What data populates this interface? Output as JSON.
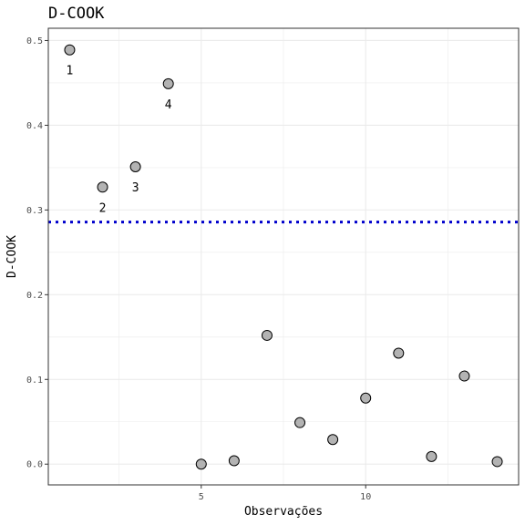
{
  "chart_data": {
    "type": "scatter",
    "title": "D-COOK",
    "xlabel": "Observações",
    "ylabel": "D-COOK",
    "xlim": [
      0.35,
      14.65
    ],
    "ylim": [
      -0.0245,
      0.5145
    ],
    "x_ticks": [
      5,
      10
    ],
    "x_tick_labels": [
      "5",
      "10"
    ],
    "y_ticks": [
      0.0,
      0.1,
      0.2,
      0.3,
      0.4,
      0.5
    ],
    "y_tick_labels": [
      "0.0",
      "0.1",
      "0.2",
      "0.3",
      "0.4",
      "0.5"
    ],
    "grid": true,
    "legend": "none",
    "reference_line": {
      "y": 0.2857,
      "color": "#0000cc",
      "style": "dotted"
    },
    "colors": {
      "point_fill": "#b3b3b3",
      "point_stroke": "#000000",
      "grid": "#ebebeb",
      "panel_border": "#333333"
    },
    "x": [
      1,
      2,
      3,
      4,
      5,
      6,
      7,
      8,
      9,
      10,
      11,
      12,
      13,
      14
    ],
    "y": [
      0.489,
      0.327,
      0.351,
      0.449,
      0.0,
      0.004,
      0.152,
      0.049,
      0.029,
      0.078,
      0.131,
      0.009,
      0.104,
      0.003
    ],
    "point_labels": [
      "1",
      "2",
      "3",
      "4",
      "",
      "",
      "",
      "",
      "",
      "",
      "",
      "",
      "",
      ""
    ]
  }
}
